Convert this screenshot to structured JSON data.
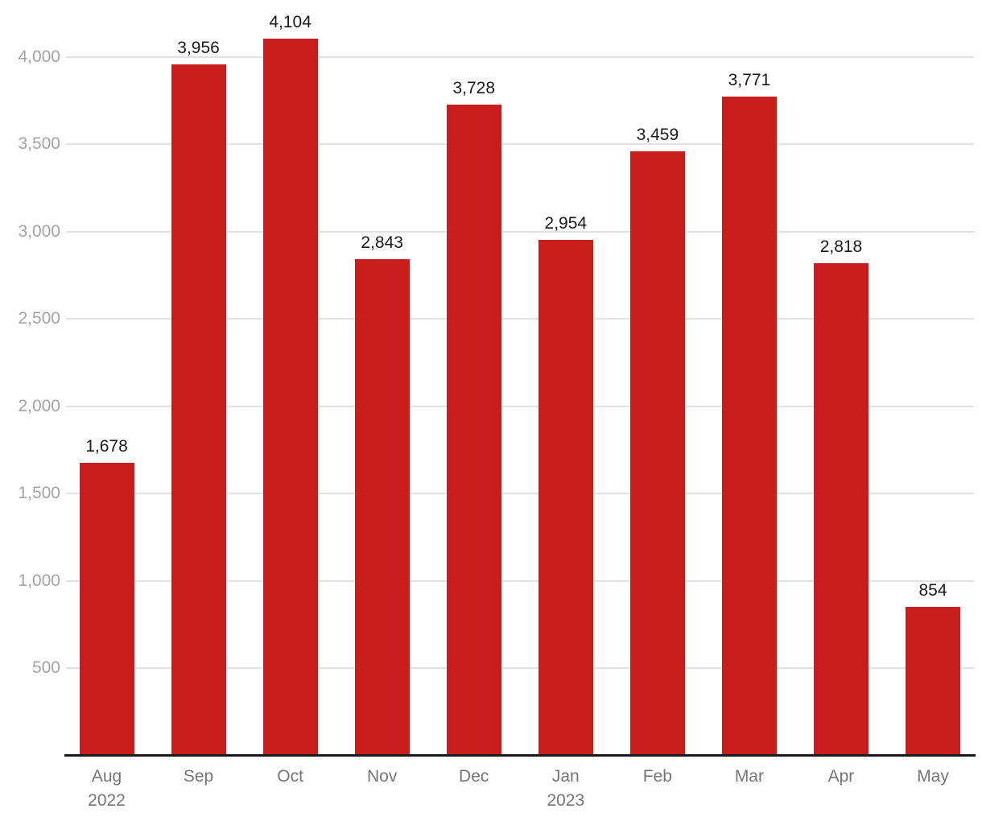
{
  "chart_data": {
    "type": "bar",
    "categories": [
      "Aug",
      "Sep",
      "Oct",
      "Nov",
      "Dec",
      "Jan",
      "Feb",
      "Mar",
      "Apr",
      "May"
    ],
    "category_sublabels": [
      "2022",
      "",
      "",
      "",
      "",
      "2023",
      "",
      "",
      "",
      ""
    ],
    "values": [
      1678,
      3956,
      4104,
      2843,
      3728,
      2954,
      3459,
      3771,
      2818,
      854
    ],
    "value_labels": [
      "1,678",
      "3,956",
      "4,104",
      "2,843",
      "3,728",
      "2,954",
      "3,459",
      "3,771",
      "2,818",
      "854"
    ],
    "y_ticks": [
      500,
      1000,
      1500,
      2000,
      2500,
      3000,
      3500,
      4000
    ],
    "y_tick_labels": [
      "500",
      "1,000",
      "1,500",
      "2,000",
      "2,500",
      "3,000",
      "3,500",
      "4,000"
    ],
    "ylim": [
      0,
      4325
    ],
    "grid": true,
    "legend": "none",
    "colors": {
      "bar": "#c91e1d",
      "value_label": "#1a1a1a",
      "x_axis_label": "#757575",
      "y_tick_label": "#a3a3a3",
      "gridline": "#e2e2e2",
      "axis_line": "#1a1a1a",
      "background": "#ffffff"
    }
  }
}
